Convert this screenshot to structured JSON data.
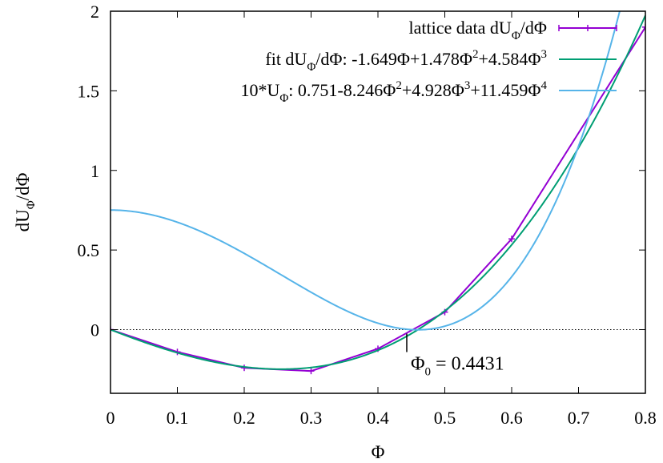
{
  "chart_data": {
    "type": "line",
    "xlabel": "Φ",
    "ylabel": {
      "main": "dU",
      "sub": "Φ",
      "tail": "/dΦ"
    },
    "xlim": [
      0,
      0.8
    ],
    "ylim": [
      -0.4,
      2
    ],
    "x_ticks": [
      "0",
      "0.1",
      "0.2",
      "0.3",
      "0.4",
      "0.5",
      "0.6",
      "0.7",
      "0.8"
    ],
    "y_ticks": [
      "0",
      "0.5",
      "1",
      "1.5",
      "2"
    ],
    "x_tick_values": [
      0,
      0.1,
      0.2,
      0.3,
      0.4,
      0.5,
      0.6,
      0.7,
      0.8
    ],
    "y_tick_values": [
      0,
      0.5,
      1,
      1.5,
      2
    ],
    "zero_line": true,
    "legend_position": "top-right",
    "series": [
      {
        "kind": "data",
        "color": "#9400d3",
        "legend": {
          "parts": [
            "lattice data dU",
            "Φ",
            "/dΦ"
          ],
          "subs": [
            1
          ]
        },
        "x": [
          0,
          0.1,
          0.2,
          0.3,
          0.4,
          0.5,
          0.6,
          0.8
        ],
        "y": [
          0,
          -0.14,
          -0.24,
          -0.26,
          -0.12,
          0.11,
          0.57,
          1.9
        ]
      },
      {
        "kind": "fit",
        "color": "#009e73",
        "legend": {
          "parts": [
            "fit dU",
            "Φ",
            "/dΦ: -1.649Φ+1.478Φ",
            "2",
            "+4.584Φ",
            "3"
          ],
          "subs": [
            1
          ],
          "sups": [
            3,
            5
          ]
        },
        "coefficients": [
          0,
          -1.649,
          1.478,
          4.584
        ]
      },
      {
        "kind": "potential",
        "color": "#56b4e9",
        "legend": {
          "parts": [
            "10*U",
            "Φ",
            ": 0.751-8.246Φ",
            "2",
            "+4.928Φ",
            "3",
            "+11.459Φ",
            "4"
          ],
          "subs": [
            1
          ],
          "sups": [
            3,
            5,
            7
          ]
        },
        "coefficients": [
          0.751,
          0,
          -8.246,
          4.928,
          11.459
        ]
      }
    ],
    "annotation": {
      "parts": [
        "Φ",
        "0",
        " = 0.4431"
      ],
      "subs": [
        1
      ],
      "x": 0.4431
    }
  }
}
